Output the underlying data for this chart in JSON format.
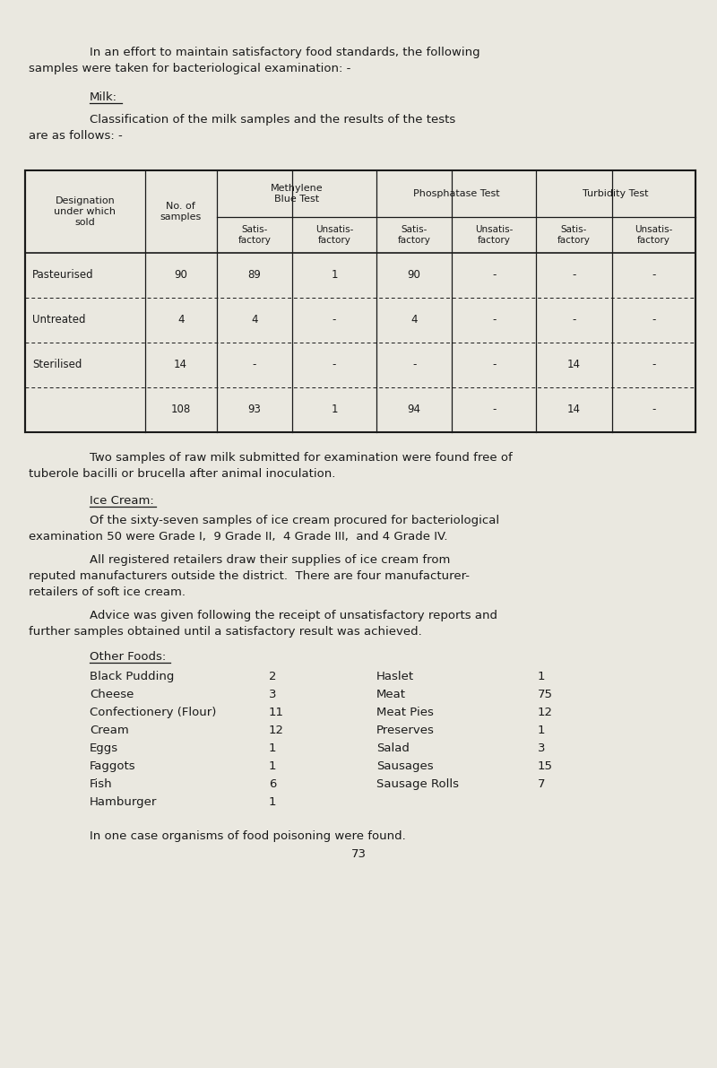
{
  "bg_color": "#eae8e0",
  "text_color": "#1a1a1a",
  "font_family": "Courier New",
  "page_width": 8.0,
  "page_height": 11.91,
  "dpi": 100,
  "intro_line1": "In an effort to maintain satisfactory food standards, the following",
  "intro_line2": "samples were taken for bacteriological examination: -",
  "milk_heading": "Milk:",
  "milk_sub1": "Classification of the milk samples and the results of the tests",
  "milk_sub2": "are as follows: -",
  "table_rows": [
    [
      "Pasteurised",
      "90",
      "89",
      "1",
      "90",
      "-",
      "-",
      "-"
    ],
    [
      "Untreated",
      "4",
      "4",
      "-",
      "4",
      "-",
      "-",
      "-"
    ],
    [
      "Sterilised",
      "14",
      "-",
      "-",
      "-",
      "-",
      "14",
      "-"
    ],
    [
      "",
      "108",
      "93",
      "1",
      "94",
      "-",
      "14",
      "-"
    ]
  ],
  "raw_milk1": "Two samples of raw milk submitted for examination were found free of",
  "raw_milk2": "tuberole bacilli or brucella after animal inoculation.",
  "ice_cream_heading": "Ice Cream:",
  "ice_para1_1": "Of the sixty-seven samples of ice cream procured for bacteriological",
  "ice_para1_2": "examination 50 were Grade I,  9 Grade II,  4 Grade III,  and 4 Grade IV.",
  "ice_para2_1": "All registered retailers draw their supplies of ice cream from",
  "ice_para2_2": "reputed manufacturers outside the district.  There are four manufacturer-",
  "ice_para2_3": "retailers of soft ice cream.",
  "ice_para3_1": "Advice was given following the receipt of unsatisfactory reports and",
  "ice_para3_2": "further samples obtained until a satisfactory result was achieved.",
  "other_foods_heading": "Other Foods:",
  "foods_left": [
    [
      "Black Pudding",
      "2"
    ],
    [
      "Cheese",
      "3"
    ],
    [
      "Confectionery (Flour)",
      "11"
    ],
    [
      "Cream",
      "12"
    ],
    [
      "Eggs",
      "1"
    ],
    [
      "Faggots",
      "1"
    ],
    [
      "Fish",
      "6"
    ],
    [
      "Hamburger",
      "1"
    ]
  ],
  "foods_right": [
    [
      "Haslet",
      "1"
    ],
    [
      "Meat",
      "75"
    ],
    [
      "Meat Pies",
      "12"
    ],
    [
      "Preserves",
      "1"
    ],
    [
      "Salad",
      "3"
    ],
    [
      "Sausages",
      "15"
    ],
    [
      "Sausage Rolls",
      "7"
    ]
  ],
  "footer1": "In one case organisms of food poisoning were found.",
  "footer2": "73",
  "indent1": 100,
  "indent2": 32,
  "font_size_body": 9.5,
  "font_size_table": 8.5,
  "font_size_table_hdr": 8.0
}
